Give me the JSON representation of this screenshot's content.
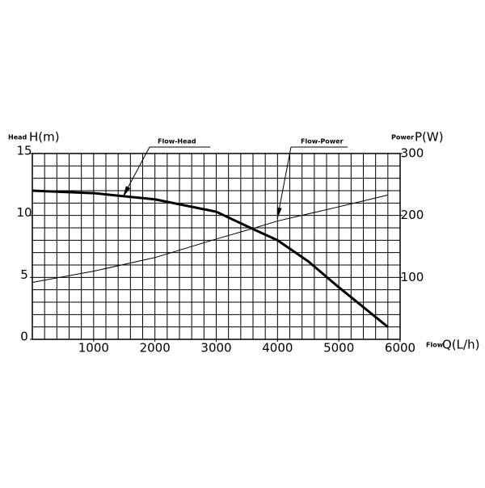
{
  "chart_data": {
    "type": "line",
    "xlabel_short": "Flow",
    "xlabel": "Q(L/h)",
    "ylabel_short": "Head",
    "ylabel": "H(m)",
    "y2label_short": "Power",
    "y2label": "P(W)",
    "xlim": [
      0,
      6000
    ],
    "xticks": [
      1000,
      2000,
      3000,
      4000,
      5000,
      6000
    ],
    "ylim": [
      0,
      15
    ],
    "yticks": [
      0,
      5,
      10,
      15
    ],
    "y2lim": [
      0,
      300
    ],
    "y2ticks": [
      100,
      200,
      300
    ],
    "grid": true,
    "series": [
      {
        "name": "Flow-Head",
        "color": "#000000",
        "x": [
          0,
          1000,
          2000,
          3000,
          3600,
          4000,
          4500,
          5000,
          5500,
          5800
        ],
        "values": [
          12,
          11.8,
          11.3,
          10.3,
          8.9,
          8.0,
          6.3,
          4.2,
          2.2,
          1.0
        ]
      },
      {
        "name": "Flow-Power",
        "color": "#000000",
        "axis": "y2",
        "x": [
          0,
          1000,
          2000,
          3000,
          3600,
          4000,
          5000,
          5800
        ],
        "values": [
          92,
          110,
          132,
          162,
          179,
          191,
          214,
          233
        ]
      }
    ]
  }
}
